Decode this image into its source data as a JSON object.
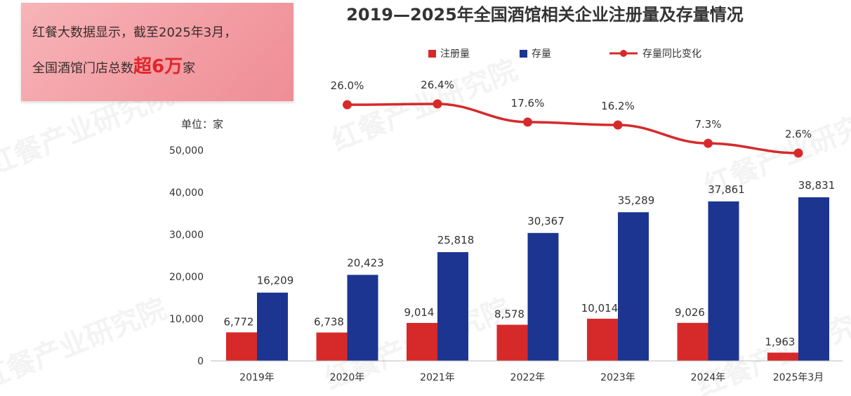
{
  "callout": {
    "line1": "红餐大数据显示，截至2025年3月，",
    "line2_prefix": "全国酒馆门店总数",
    "line2_highlight": "超6万",
    "line2_suffix": "家"
  },
  "watermark": "红餐产业研究院",
  "colors": {
    "registrations": "#d62a2a",
    "stock": "#1b3591",
    "yoy": "#d62a2a"
  },
  "chart_data": {
    "type": "bar",
    "title": "2019—2025年全国酒馆相关企业注册量及存量情况",
    "unit_label": "单位：家",
    "categories": [
      "2019年",
      "2020年",
      "2021年",
      "2022年",
      "2023年",
      "2024年",
      "2025年3月"
    ],
    "series": [
      {
        "name": "注册量",
        "values": [
          6772,
          6738,
          9014,
          8578,
          10014,
          9026,
          1963
        ],
        "labels": [
          "6,772",
          "6,738",
          "9,014",
          "8,578",
          "10,014",
          "9,026",
          "1,963"
        ]
      },
      {
        "name": "存量",
        "values": [
          16209,
          20423,
          25818,
          30367,
          35289,
          37861,
          38831
        ],
        "labels": [
          "16,209",
          "20,423",
          "25,818",
          "30,367",
          "35,289",
          "37,861",
          "38,831"
        ]
      },
      {
        "name": "存量同比变化",
        "type": "line",
        "x": [
          "2020年",
          "2021年",
          "2022年",
          "2023年",
          "2024年",
          "2025年3月"
        ],
        "values": [
          26.0,
          26.4,
          17.6,
          16.2,
          7.3,
          2.6
        ],
        "labels": [
          "26.0%",
          "26.4%",
          "17.6%",
          "16.2%",
          "7.3%",
          "2.6%"
        ]
      }
    ],
    "y_ticks": [
      "0",
      "10,000",
      "20,000",
      "30,000",
      "40,000",
      "50,000"
    ],
    "ylim": [
      0,
      50000
    ],
    "legend_position": "top"
  }
}
